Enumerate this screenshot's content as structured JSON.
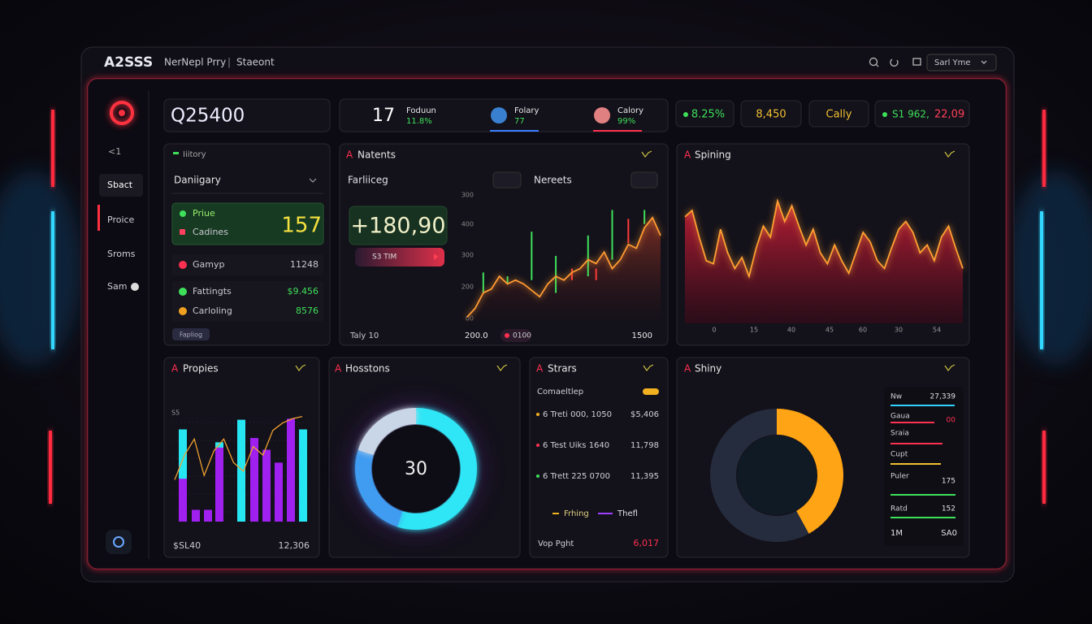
{
  "header": {
    "brand": "A2SSS",
    "nav": [
      "NerNepl Prry",
      "|",
      "Staeont"
    ],
    "select": "Sarl Yme"
  },
  "sidebar": {
    "back": "<1",
    "items": [
      "Sbact",
      "Proice",
      "Sroms",
      "Sam"
    ]
  },
  "panel_icon": "A",
  "stats": {
    "main": "Q25400",
    "count": "17",
    "people": [
      {
        "name": "Foduun",
        "value": "11.8%"
      },
      {
        "name": "Folary",
        "value": "77"
      },
      {
        "name": "Calory",
        "value": "99%"
      }
    ],
    "chips": [
      "8.25%",
      "8,450",
      "Cally"
    ],
    "price": "S1 962,",
    "change": "22,09"
  },
  "history": {
    "label": "Iiitory",
    "dropdown": "Daniigary",
    "highlight": {
      "items": [
        "Priue",
        "Cadines"
      ],
      "value": "157"
    },
    "rows": [
      {
        "label": "Gamyp",
        "value": "11248"
      },
      {
        "label": "Fattingts",
        "value": "$9.456"
      },
      {
        "label": "Carloling",
        "value": "8576"
      }
    ],
    "button": "Fapliog"
  },
  "natents": {
    "title": "Natents",
    "tab1": "Farliiceg",
    "tab2": "Nereets",
    "value": "+180,90",
    "button": "S3 TIM",
    "y_labels": [
      "300",
      "400",
      "300",
      "200",
      "00"
    ],
    "footer": [
      "Taly 10",
      "200.0",
      "0100",
      "1500"
    ],
    "chart": {
      "ylim": [
        0,
        100
      ],
      "line": [
        3,
        10,
        22,
        25,
        35,
        29,
        32,
        29,
        24,
        19,
        29,
        35,
        32,
        38,
        41,
        48,
        45,
        54,
        41,
        48,
        60,
        57,
        73,
        81,
        67
      ],
      "candle_high": [
        null,
        null,
        38,
        null,
        null,
        35,
        null,
        null,
        70,
        null,
        null,
        51,
        null,
        41,
        null,
        67,
        41,
        null,
        87,
        null,
        80,
        null,
        87,
        null,
        null
      ],
      "candle_low": [
        null,
        null,
        22,
        null,
        null,
        29,
        null,
        null,
        32,
        null,
        null,
        22,
        null,
        32,
        null,
        35,
        32,
        null,
        48,
        null,
        61,
        null,
        76,
        null,
        null
      ],
      "candle_color": [
        null,
        null,
        "#3ee05a",
        null,
        null,
        "#3ee05a",
        null,
        null,
        "#3ee05a",
        null,
        null,
        "#3ee05a",
        null,
        "#ff3a3a",
        null,
        "#3ee05a",
        "#ff3a3a",
        null,
        "#3ee05a",
        null,
        "#ff3a3a",
        null,
        "#3ee05a",
        null,
        null
      ]
    }
  },
  "spining": {
    "title": "Spining",
    "x_labels": [
      "0",
      "15",
      "40",
      "45",
      "60",
      "30",
      "54"
    ],
    "chart": {
      "ylim": [
        0,
        100
      ],
      "line": [
        68,
        72,
        55,
        40,
        38,
        60,
        45,
        35,
        42,
        30,
        48,
        62,
        55,
        78,
        65,
        75,
        62,
        50,
        60,
        45,
        38,
        50,
        40,
        32,
        45,
        58,
        52,
        40,
        35,
        48,
        60,
        65,
        58,
        45,
        50,
        40,
        55,
        62,
        48,
        35
      ]
    }
  },
  "propies": {
    "title": "Propies",
    "label": "S5",
    "footer": [
      "$SL40",
      "12,306"
    ],
    "chart": {
      "ylim": [
        0,
        100
      ],
      "bars": {
        "values": [
          86,
          40,
          11,
          11,
          74,
          69,
          95,
          78,
          67,
          55,
          96,
          86
        ],
        "colors": [
          "#26e6f2",
          "#a020f0",
          "#a020f0",
          "#a020f0",
          "#26e6f2",
          "#a020f0",
          "#26e6f2",
          "#a020f0",
          "#a020f0",
          "#a020f0",
          "#a020f0",
          "#26e6f2"
        ]
      },
      "line": [
        39,
        62,
        77,
        43,
        66,
        77,
        55,
        47,
        70,
        62,
        85,
        92,
        96,
        98
      ],
      "line_color": "#f0a030"
    }
  },
  "hosstons": {
    "title": "Hosstons",
    "center": "30",
    "donut": {
      "values": [
        55,
        25,
        20
      ],
      "colors": [
        "#2ee6f5",
        "#3f9cf0",
        "#c8d6e8"
      ]
    }
  },
  "strars": {
    "title": "Strars",
    "subtitle": "Comaeltlep",
    "rows": [
      {
        "label": "6 Treti 000, 1050",
        "value": "$5,406"
      },
      {
        "label": "6 Test Uiks 1640",
        "value": "11,798"
      },
      {
        "label": "6 Trett 225 0700",
        "value": "11,395"
      }
    ],
    "legend": [
      "Frhing",
      "Thefl"
    ],
    "footer": {
      "label": "Vop Pght",
      "value": "6,017"
    }
  },
  "shiny": {
    "title": "Shiny",
    "donut": {
      "values": [
        42,
        58
      ],
      "colors": [
        "#ffa414",
        "#252c3d"
      ]
    },
    "list": [
      {
        "label": "Nw",
        "value": "27,339"
      },
      {
        "label": "Gaua",
        "value": "00"
      },
      {
        "label": "Sraia"
      },
      {
        "label": "Cupt"
      },
      {
        "label": "Puler",
        "value": "175"
      },
      {
        "label": "Ratd",
        "value": "152"
      }
    ],
    "footer": [
      "1M",
      "SA0"
    ]
  }
}
